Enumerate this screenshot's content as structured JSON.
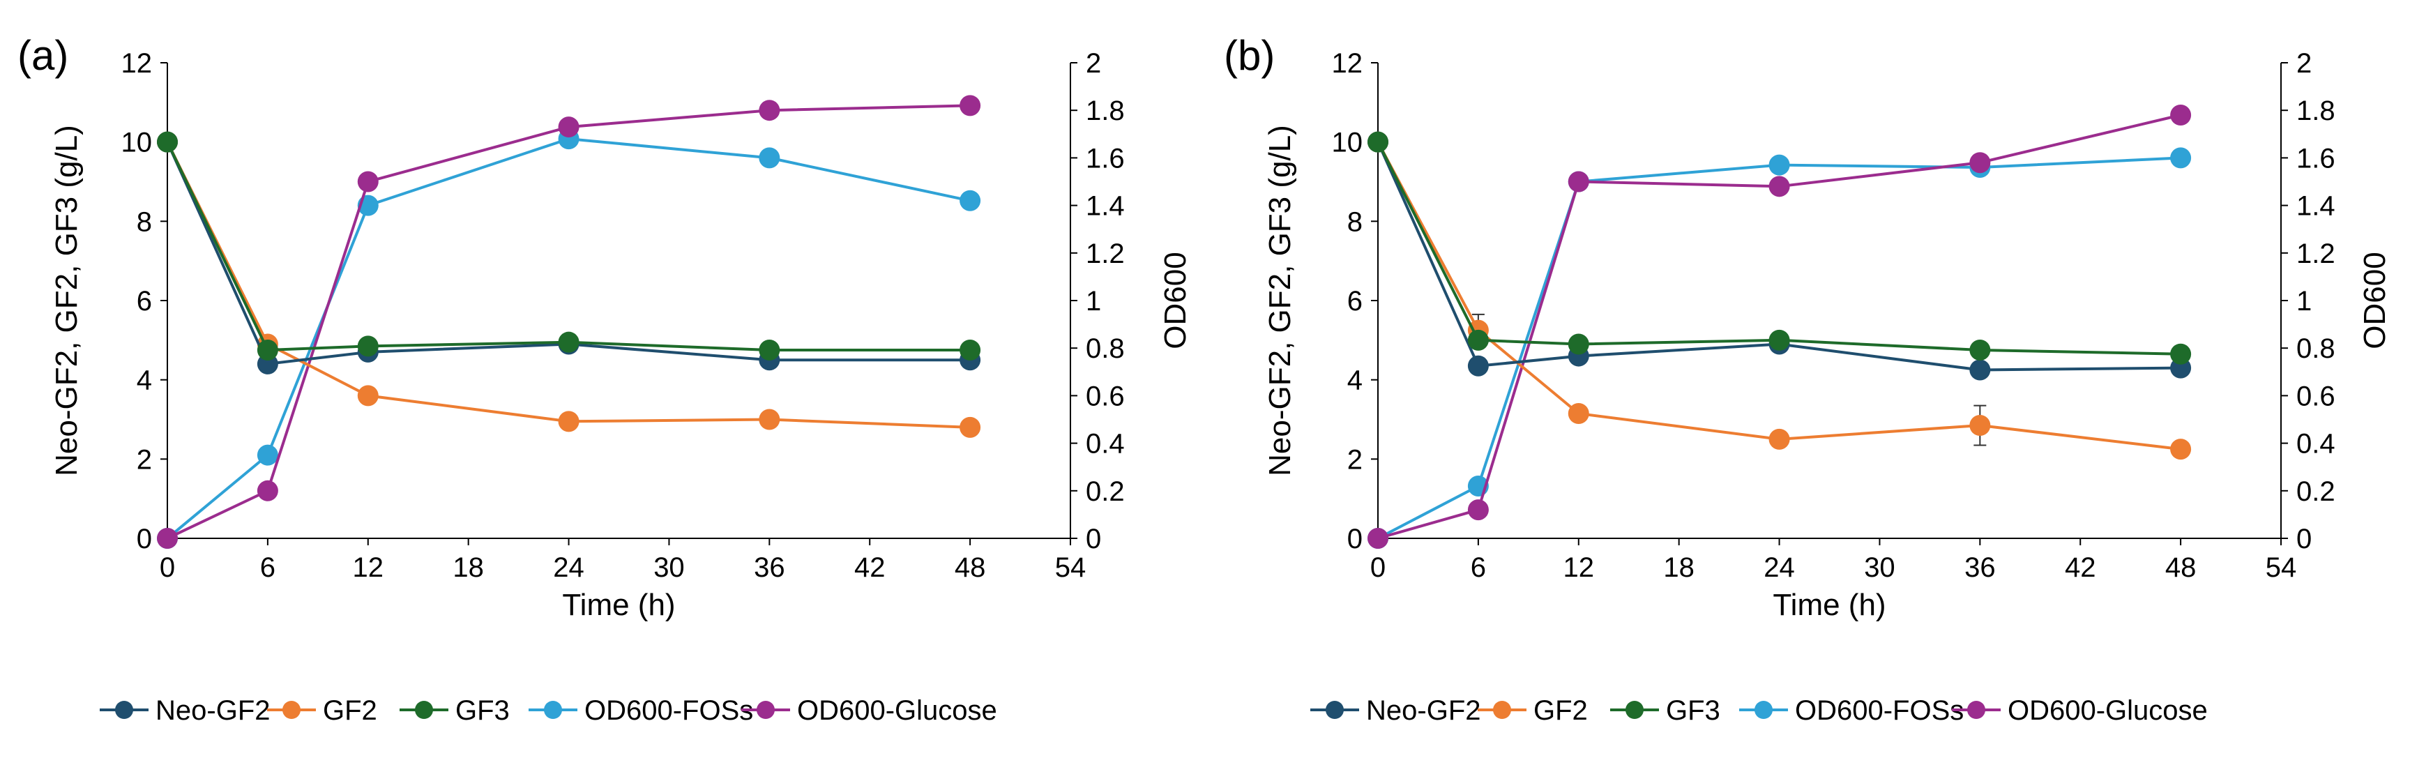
{
  "figure": {
    "legend_position": "bottom-center",
    "series_styles": [
      {
        "name": "Neo-GF2",
        "color": "#1f4e6e"
      },
      {
        "name": "GF2",
        "color": "#ed7d31"
      },
      {
        "name": "GF3",
        "color": "#1e6b2a"
      },
      {
        "name": "OD600-FOSs",
        "color": "#2fa2d6"
      },
      {
        "name": "OD600-Glucose",
        "color": "#9b2c8e"
      }
    ]
  },
  "chart_data": [
    {
      "type": "line",
      "panel_label": "(a)",
      "xlabel": "Time (h)",
      "ylabel": "Neo-GF2, GF2, GF3 (g/L)",
      "y2label": "OD600",
      "xlim": [
        0,
        54
      ],
      "ylim": [
        0,
        12
      ],
      "y2lim": [
        0,
        2
      ],
      "x_ticks": [
        "0",
        "6",
        "12",
        "18",
        "24",
        "30",
        "36",
        "42",
        "48",
        "54"
      ],
      "y_ticks": [
        "0",
        "2",
        "4",
        "6",
        "8",
        "10",
        "12"
      ],
      "y2_ticks": [
        "0",
        "0.2",
        "0.4",
        "0.6",
        "0.8",
        "1",
        "1.2",
        "1.4",
        "1.6",
        "1.8",
        "2"
      ],
      "x": [
        0,
        6,
        12,
        24,
        36,
        48
      ],
      "series": [
        {
          "name": "Neo-GF2",
          "axis": "left",
          "values": [
            10.0,
            4.4,
            4.7,
            4.9,
            4.5,
            4.5
          ]
        },
        {
          "name": "GF2",
          "axis": "left",
          "values": [
            10.0,
            4.9,
            3.6,
            2.95,
            3.0,
            2.8
          ]
        },
        {
          "name": "GF3",
          "axis": "left",
          "values": [
            10.0,
            4.75,
            4.85,
            4.95,
            4.75,
            4.75
          ]
        },
        {
          "name": "OD600-FOSs",
          "axis": "right",
          "values": [
            0.0,
            0.35,
            1.4,
            1.68,
            1.6,
            1.42
          ]
        },
        {
          "name": "OD600-Glucose",
          "axis": "right",
          "values": [
            0.0,
            0.2,
            1.5,
            1.73,
            1.8,
            1.82
          ]
        }
      ]
    },
    {
      "type": "line",
      "panel_label": "(b)",
      "xlabel": "Time (h)",
      "ylabel": "Neo-GF2, GF2, GF3 (g/L)",
      "y2label": "OD600",
      "xlim": [
        0,
        54
      ],
      "ylim": [
        0,
        12
      ],
      "y2lim": [
        0,
        2
      ],
      "x_ticks": [
        "0",
        "6",
        "12",
        "18",
        "24",
        "30",
        "36",
        "42",
        "48",
        "54"
      ],
      "y_ticks": [
        "0",
        "2",
        "4",
        "6",
        "8",
        "10",
        "12"
      ],
      "y2_ticks": [
        "0",
        "0.2",
        "0.4",
        "0.6",
        "0.8",
        "1",
        "1.2",
        "1.4",
        "1.6",
        "1.8",
        "2"
      ],
      "x": [
        0,
        6,
        12,
        24,
        36,
        48
      ],
      "series": [
        {
          "name": "Neo-GF2",
          "axis": "left",
          "values": [
            10.0,
            4.35,
            4.6,
            4.9,
            4.25,
            4.3
          ]
        },
        {
          "name": "GF2",
          "axis": "left",
          "values": [
            10.0,
            5.25,
            3.15,
            2.5,
            2.85,
            2.25
          ],
          "error": [
            0,
            0.4,
            0,
            0,
            0.5,
            0
          ]
        },
        {
          "name": "GF3",
          "axis": "left",
          "values": [
            10.0,
            5.0,
            4.9,
            5.0,
            4.75,
            4.65
          ]
        },
        {
          "name": "OD600-FOSs",
          "axis": "right",
          "values": [
            0.0,
            0.22,
            1.5,
            1.57,
            1.56,
            1.6
          ]
        },
        {
          "name": "OD600-Glucose",
          "axis": "right",
          "values": [
            0.0,
            0.12,
            1.5,
            1.48,
            1.58,
            1.78
          ]
        }
      ]
    }
  ]
}
